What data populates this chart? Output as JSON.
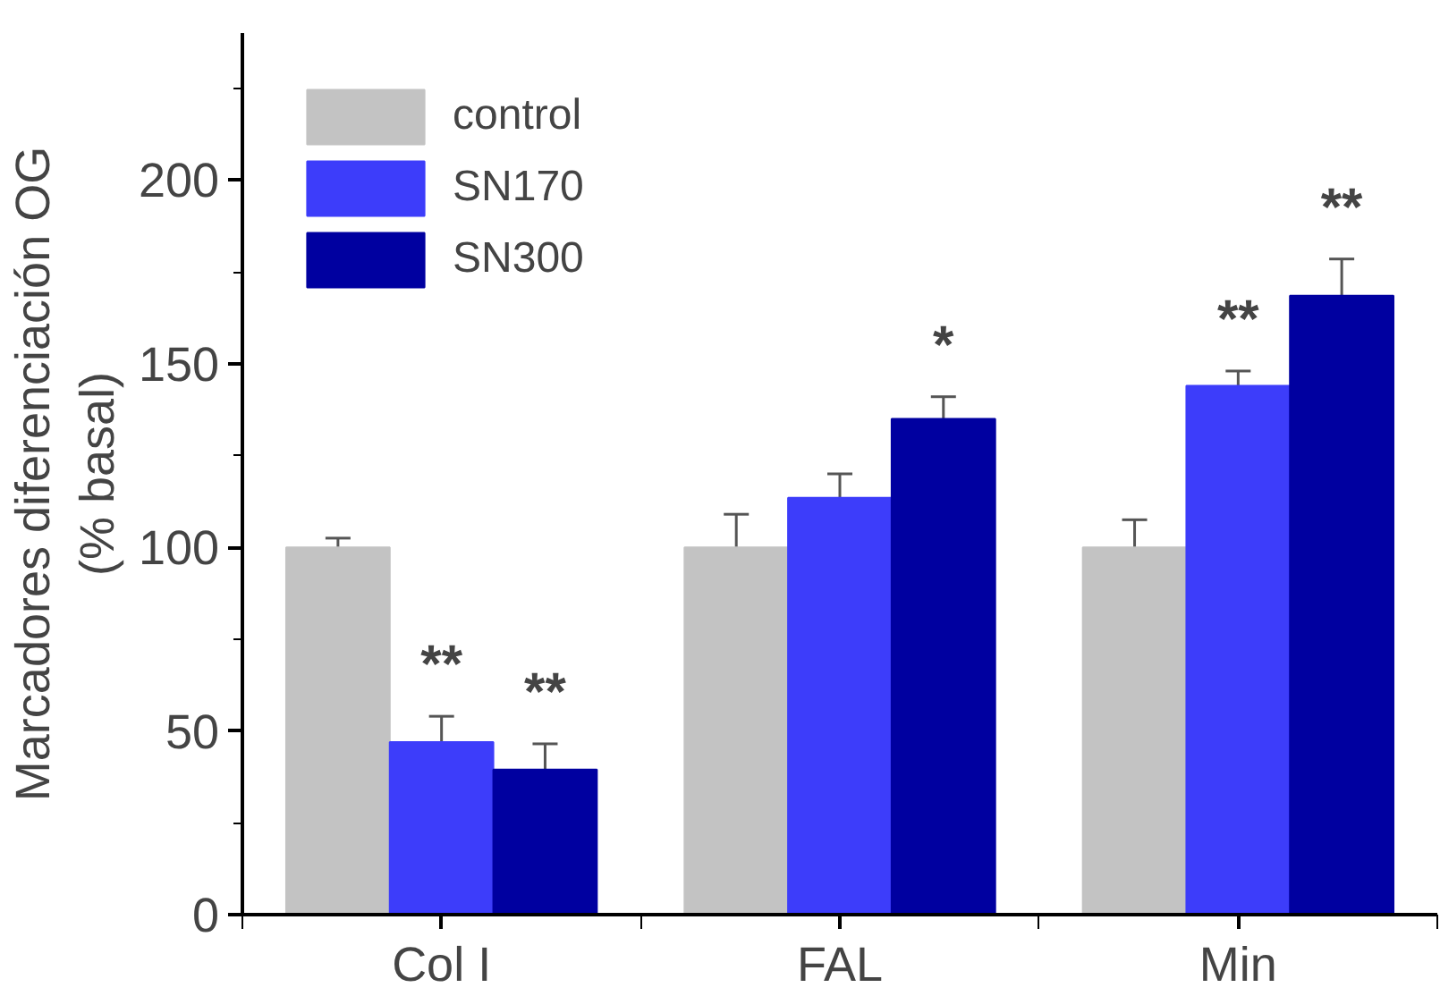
{
  "chart_data": {
    "type": "bar",
    "ylabel": "Marcadores diferenciación OG\n(% basal)",
    "categories": [
      "Col I",
      "FAL",
      "Min"
    ],
    "series": [
      {
        "name": "control",
        "color": "#c3c3c3",
        "values": [
          100,
          100,
          100
        ],
        "errors": [
          2.5,
          9,
          7.5
        ]
      },
      {
        "name": "SN170",
        "color": "#3d3dfa",
        "values": [
          47,
          113.5,
          144
        ],
        "errors": [
          7,
          6.5,
          4
        ],
        "value_labels": [
          "**",
          null,
          "**"
        ]
      },
      {
        "name": "SN300",
        "color": "#0000a0",
        "values": [
          39.5,
          135,
          168.5
        ],
        "errors": [
          7,
          6,
          10
        ],
        "value_labels": [
          "**",
          "*",
          "**"
        ]
      }
    ],
    "ylim": [
      0,
      240
    ],
    "yticks": [
      0,
      50,
      100,
      150,
      200
    ],
    "legend": "top left",
    "grid": false
  }
}
